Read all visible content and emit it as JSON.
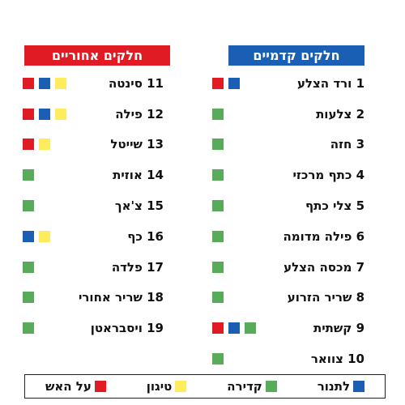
{
  "colors": {
    "red": "#e01b24",
    "yellow": "#ffec5c",
    "green": "#57ab5a",
    "blue": "#1a5fb4"
  },
  "front": {
    "header": "חלקים קדמיים",
    "items": [
      {
        "num": "1",
        "label": "ורד הצלע",
        "swatches": [
          "blue",
          "red"
        ]
      },
      {
        "num": "2",
        "label": "צלעות",
        "swatches": [
          "green"
        ]
      },
      {
        "num": "3",
        "label": "חזה",
        "swatches": [
          "green"
        ]
      },
      {
        "num": "4",
        "label": "כתף מרכזי",
        "swatches": [
          "green"
        ]
      },
      {
        "num": "5",
        "label": "צלי כתף",
        "swatches": [
          "green"
        ]
      },
      {
        "num": "6",
        "label": "פילה מדומה",
        "swatches": [
          "green"
        ]
      },
      {
        "num": "7",
        "label": "מכסה הצלע",
        "swatches": [
          "green"
        ]
      },
      {
        "num": "8",
        "label": "שריר הזרוע",
        "swatches": [
          "green"
        ]
      },
      {
        "num": "9",
        "label": "קשתית",
        "swatches": [
          "green",
          "blue",
          "red"
        ]
      },
      {
        "num": "10",
        "label": "צוואר",
        "swatches": [
          "green"
        ]
      }
    ]
  },
  "back": {
    "header": "חלקים אחוריים",
    "items": [
      {
        "num": "11",
        "label": "סינטה",
        "swatches": [
          "yellow",
          "blue",
          "red"
        ]
      },
      {
        "num": "12",
        "label": "פילה",
        "swatches": [
          "yellow",
          "blue",
          "red"
        ]
      },
      {
        "num": "13",
        "label": "שייטל",
        "swatches": [
          "yellow",
          "red"
        ]
      },
      {
        "num": "14",
        "label": "אוזית",
        "swatches": [
          "green"
        ]
      },
      {
        "num": "15",
        "label": "צ'אך",
        "swatches": [
          "green"
        ]
      },
      {
        "num": "16",
        "label": "כף",
        "swatches": [
          "yellow",
          "blue"
        ]
      },
      {
        "num": "17",
        "label": "פלדה",
        "swatches": [
          "green"
        ]
      },
      {
        "num": "18",
        "label": "שריר אחורי",
        "swatches": [
          "green"
        ]
      },
      {
        "num": "19",
        "label": "ויסבראטן",
        "swatches": [
          "green"
        ]
      }
    ]
  },
  "legend": [
    {
      "color": "red",
      "label": "על האש"
    },
    {
      "color": "yellow",
      "label": "טיגון"
    },
    {
      "color": "green",
      "label": "קדירה"
    },
    {
      "color": "blue",
      "label": "לתנור"
    }
  ]
}
